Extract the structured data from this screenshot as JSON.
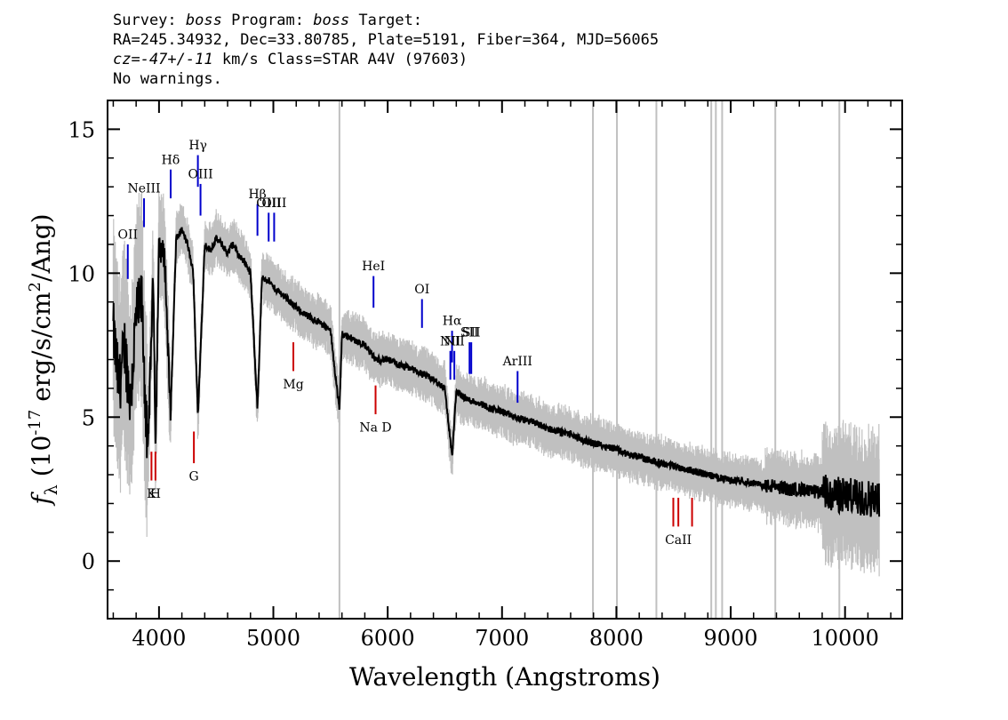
{
  "header": {
    "line1": {
      "a": "Survey: ",
      "b": "boss",
      "c": " Program: ",
      "d": "boss",
      "e": " Target:"
    },
    "line2": "RA=245.34932, Dec=33.80785, Plate=5191, Fiber=364, MJD=56065",
    "line3": {
      "a": "cz=-47+/-11",
      "b": " km/s Class=STAR A4V (97603)"
    },
    "line4": "No warnings."
  },
  "chart_data": {
    "type": "line",
    "xlabel": "Wavelength (Angstroms)",
    "ylabel_parts": {
      "f": "f",
      "sub": "λ",
      "open": " (10",
      "exp": "-17",
      "unit": " erg/s/cm",
      "exp2": "2",
      "close": "/Ang)"
    },
    "xlim": [
      3550,
      10500
    ],
    "ylim": [
      -2,
      16
    ],
    "xticks": [
      4000,
      5000,
      6000,
      7000,
      8000,
      9000,
      10000
    ],
    "yticks": [
      0,
      5,
      10,
      15
    ],
    "grid": false,
    "colors": {
      "spectrum": "#000000",
      "error": "#c0c0c0",
      "emission": "#0000cc",
      "absorption": "#cc0000"
    },
    "sky_lines": [
      5578,
      7795,
      8005,
      8350,
      8830,
      8870,
      8925,
      9390,
      9950
    ],
    "spectrum": {
      "x": [
        3600,
        3650,
        3700,
        3750,
        3800,
        3850,
        3900,
        3950,
        3970,
        4000,
        4050,
        4101,
        4150,
        4200,
        4250,
        4300,
        4340,
        4400,
        4450,
        4500,
        4550,
        4600,
        4650,
        4700,
        4750,
        4800,
        4861,
        4900,
        4950,
        5000,
        5100,
        5200,
        5300,
        5400,
        5500,
        5578,
        5600,
        5700,
        5800,
        5893,
        6000,
        6100,
        6200,
        6300,
        6400,
        6500,
        6563,
        6600,
        6700,
        6800,
        6900,
        7000,
        7100,
        7200,
        7300,
        7400,
        7500,
        7600,
        7700,
        7800,
        7900,
        8000,
        8100,
        8200,
        8300,
        8400,
        8500,
        8600,
        8700,
        8800,
        8900,
        9000,
        9100,
        9200,
        9300,
        9400,
        9500,
        9600,
        9700,
        9800,
        9900,
        10000,
        10100,
        10200,
        10300
      ],
      "y": [
        8.0,
        6.0,
        7.5,
        5.5,
        8.5,
        9.0,
        3.5,
        10.0,
        4.0,
        11.0,
        10.5,
        5.0,
        11.2,
        11.5,
        11.0,
        10.0,
        5.0,
        11.0,
        10.8,
        11.2,
        11.0,
        10.7,
        11.0,
        10.6,
        10.4,
        10.0,
        5.3,
        9.8,
        9.8,
        9.5,
        9.2,
        8.8,
        8.5,
        8.3,
        8.0,
        5.2,
        7.9,
        7.7,
        7.5,
        7.0,
        7.0,
        6.8,
        6.7,
        6.5,
        6.3,
        6.0,
        3.6,
        5.9,
        5.6,
        5.5,
        5.3,
        5.2,
        5.0,
        4.9,
        4.8,
        4.6,
        4.5,
        4.4,
        4.2,
        4.1,
        4.0,
        3.9,
        3.7,
        3.6,
        3.5,
        3.4,
        3.3,
        3.2,
        3.1,
        3.0,
        2.9,
        2.8,
        2.8,
        2.7,
        2.6,
        2.6,
        2.5,
        2.5,
        2.4,
        2.4,
        2.3,
        2.3,
        2.2,
        2.2,
        2.1
      ]
    },
    "emission_lines": [
      {
        "label": "OII",
        "x": 3727,
        "y0": 9.8,
        "y1": 11.0,
        "ly": 11.2
      },
      {
        "label": "NeIII",
        "x": 3869,
        "y0": 11.6,
        "y1": 12.6,
        "ly": 12.8
      },
      {
        "label": "Hδ",
        "x": 4102,
        "y0": 12.6,
        "y1": 13.6,
        "ly": 13.8
      },
      {
        "label": "Hγ",
        "x": 4340,
        "y0": 13.0,
        "y1": 14.1,
        "ly": 14.3
      },
      {
        "label": "OIII",
        "x": 4363,
        "y0": 12.0,
        "y1": 13.1,
        "ly": 13.3
      },
      {
        "label": "Hβ",
        "x": 4861,
        "y0": 11.3,
        "y1": 12.4,
        "ly": 12.6
      },
      {
        "label": "OIII",
        "x": 4959,
        "y0": 11.1,
        "y1": 12.1,
        "ly": 12.3
      },
      {
        "label": "OIII",
        "x": 5007,
        "y0": 11.1,
        "y1": 12.1,
        "ly": 12.3
      },
      {
        "label": "HeI",
        "x": 5876,
        "y0": 8.8,
        "y1": 9.9,
        "ly": 10.1
      },
      {
        "label": "OI",
        "x": 6300,
        "y0": 8.1,
        "y1": 9.1,
        "ly": 9.3
      },
      {
        "label": "NII",
        "x": 6548,
        "y0": 6.3,
        "y1": 7.3,
        "ly": 7.5
      },
      {
        "label": "Hα",
        "x": 6563,
        "y0": 6.9,
        "y1": 8.0,
        "ly": 8.2
      },
      {
        "label": "NII",
        "x": 6583,
        "y0": 6.3,
        "y1": 7.3,
        "ly": 7.5
      },
      {
        "label": "SII",
        "x": 6716,
        "y0": 6.5,
        "y1": 7.6,
        "ly": 7.8
      },
      {
        "label": "SII",
        "x": 6731,
        "y0": 6.5,
        "y1": 7.6,
        "ly": 7.8
      },
      {
        "label": "ArIII",
        "x": 7136,
        "y0": 5.5,
        "y1": 6.6,
        "ly": 6.8
      }
    ],
    "absorption_lines": [
      {
        "label": "K",
        "x": 3934,
        "y0": 2.8,
        "y1": 3.8,
        "ly": 2.2
      },
      {
        "label": "H",
        "x": 3969,
        "y0": 2.8,
        "y1": 3.8,
        "ly": 2.2
      },
      {
        "label": "G",
        "x": 4305,
        "y0": 3.4,
        "y1": 4.5,
        "ly": 2.8
      },
      {
        "label": "Mg",
        "x": 5175,
        "y0": 6.6,
        "y1": 7.6,
        "ly": 6.0
      },
      {
        "label": "Na D",
        "x": 5894,
        "y0": 5.1,
        "y1": 6.1,
        "ly": 4.5
      },
      {
        "label": "",
        "x": 8498,
        "y0": 1.2,
        "y1": 2.2,
        "ly": 0.6
      },
      {
        "label": "CaII",
        "x": 8542,
        "y0": 1.2,
        "y1": 2.2,
        "ly": 0.6
      },
      {
        "label": "",
        "x": 8662,
        "y0": 1.2,
        "y1": 2.2,
        "ly": 0.6
      }
    ]
  }
}
